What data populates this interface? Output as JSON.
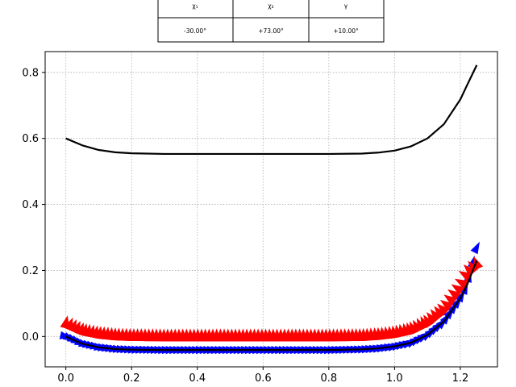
{
  "table": {
    "headers": [
      "χ₁",
      "χ₂",
      "γ"
    ],
    "values": [
      "-30.00°",
      "+73.00°",
      "+10.00°"
    ]
  },
  "chart_data": {
    "type": "line",
    "title": "",
    "xlabel": "",
    "ylabel": "",
    "xlim": [
      -0.063,
      1.313
    ],
    "ylim": [
      -0.092,
      0.863
    ],
    "xticks": [
      0.0,
      0.2,
      0.4,
      0.6,
      0.8,
      1.0,
      1.2
    ],
    "yticks": [
      0.0,
      0.2,
      0.4,
      0.6,
      0.8
    ],
    "xtick_labels": [
      "0.0",
      "0.2",
      "0.4",
      "0.6",
      "0.8",
      "1.0",
      "1.2"
    ],
    "ytick_labels": [
      "0.0",
      "0.2",
      "0.4",
      "0.6",
      "0.8"
    ],
    "grid": true,
    "colors": {
      "upper_curve": "#000000",
      "lower_curve": "#000000",
      "blue_arrows": "#0000ff",
      "red_arrows": "#ff0000",
      "grid": "#b0b0b0"
    },
    "series": [
      {
        "color": "#000000",
        "style": "line",
        "x": [
          0.0,
          0.05,
          0.1,
          0.15,
          0.2,
          0.3,
          0.4,
          0.5,
          0.6,
          0.7,
          0.8,
          0.9,
          0.95,
          1.0,
          1.05,
          1.1,
          1.15,
          1.2,
          1.22,
          1.25
        ],
        "y": [
          0.6,
          0.579,
          0.565,
          0.558,
          0.555,
          0.553,
          0.553,
          0.553,
          0.553,
          0.553,
          0.553,
          0.554,
          0.557,
          0.563,
          0.576,
          0.6,
          0.643,
          0.718,
          0.76,
          0.822
        ]
      },
      {
        "color": "#000000",
        "style": "line",
        "x": [
          0.0,
          0.05,
          0.1,
          0.15,
          0.2,
          0.3,
          0.4,
          0.5,
          0.6,
          0.7,
          0.8,
          0.9,
          0.95,
          1.0,
          1.05,
          1.1,
          1.15,
          1.2,
          1.22,
          1.25
        ],
        "y": [
          0.0,
          -0.022,
          -0.033,
          -0.038,
          -0.04,
          -0.041,
          -0.041,
          -0.041,
          -0.041,
          -0.041,
          -0.041,
          -0.039,
          -0.036,
          -0.03,
          -0.019,
          0.005,
          0.045,
          0.115,
          0.155,
          0.23
        ]
      },
      {
        "color": "#0000ff",
        "style": "arrow-markers",
        "x": [
          0.0,
          0.05,
          0.1,
          0.15,
          0.2,
          0.3,
          0.4,
          0.5,
          0.6,
          0.7,
          0.8,
          0.9,
          0.95,
          1.0,
          1.05,
          1.1,
          1.15,
          1.2,
          1.22,
          1.25
        ],
        "y": [
          0.0,
          -0.022,
          -0.033,
          -0.038,
          -0.04,
          -0.041,
          -0.041,
          -0.041,
          -0.041,
          -0.041,
          -0.041,
          -0.039,
          -0.036,
          -0.03,
          -0.019,
          0.005,
          0.045,
          0.115,
          0.155,
          0.27
        ]
      },
      {
        "color": "#ff0000",
        "style": "arrow-markers",
        "x": [
          0.0,
          0.05,
          0.1,
          0.15,
          0.2,
          0.3,
          0.4,
          0.5,
          0.6,
          0.7,
          0.8,
          0.9,
          0.95,
          1.0,
          1.05,
          1.1,
          1.15,
          1.2,
          1.22,
          1.25
        ],
        "y": [
          0.04,
          0.018,
          0.008,
          0.003,
          0.001,
          0.0,
          0.0,
          0.0,
          0.0,
          0.0,
          0.0,
          0.001,
          0.004,
          0.01,
          0.021,
          0.045,
          0.085,
          0.155,
          0.195,
          0.22
        ]
      }
    ]
  }
}
